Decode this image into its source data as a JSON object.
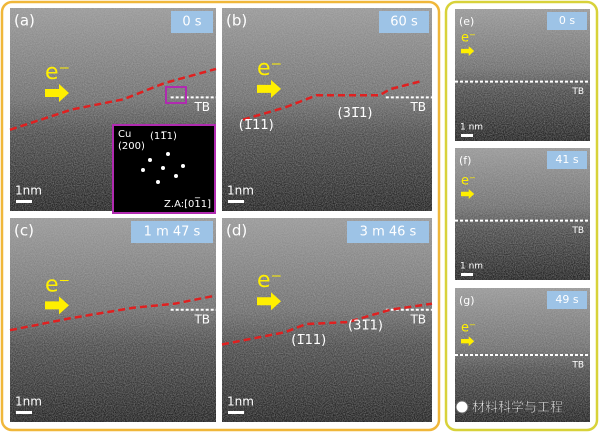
{
  "panels": [
    {
      "label": "(a)",
      "time": "0 s",
      "electron": "e⁻",
      "tb": "TB",
      "scale": "1nm",
      "facets": []
    },
    {
      "label": "(b)",
      "time": "60 s",
      "electron": "e⁻",
      "tb": "TB",
      "scale": "1nm",
      "facets": [
        "(1̅11)",
        "(31̅1)"
      ]
    },
    {
      "label": "(c)",
      "time": "1 m 47 s",
      "electron": "e⁻",
      "tb": "TB",
      "scale": "1nm",
      "facets": []
    },
    {
      "label": "(d)",
      "time": "3 m 46 s",
      "electron": "e⁻",
      "tb": "TB",
      "scale": "1nm",
      "facets": [
        "(1̅11)",
        "(31̅1)"
      ]
    },
    {
      "label": "(e)",
      "time": "0 s",
      "electron": "e⁻",
      "tb": "TB",
      "scale": "1 nm",
      "facets": []
    },
    {
      "label": "(f)",
      "time": "41 s",
      "electron": "e⁻",
      "tb": "TB",
      "scale": "1 nm",
      "facets": []
    },
    {
      "label": "(g)",
      "time": "49 s",
      "electron": "e⁻",
      "tb": "TB",
      "scale": "",
      "facets": []
    }
  ],
  "inset": {
    "element": "Cu",
    "plane_a": "(200)",
    "plane_b": "(11̅1)",
    "zone_axis": "Z.A:[01̅1]"
  },
  "watermark": "材料科学与工程"
}
